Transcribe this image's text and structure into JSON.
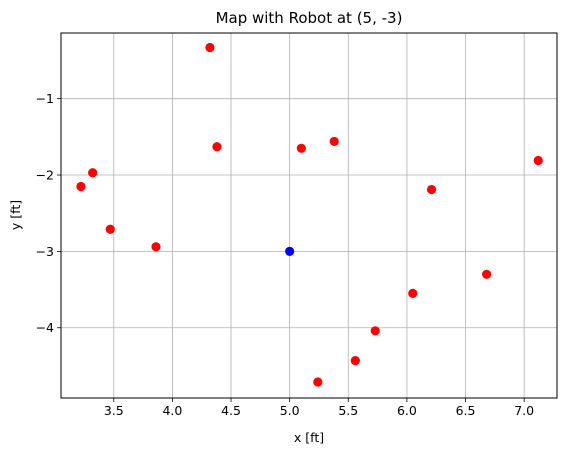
{
  "chart_data": {
    "type": "scatter",
    "title": "Map with Robot at (5, -3)",
    "xlabel": "x [ft]",
    "ylabel": "y [ft]",
    "xlim": [
      3.05,
      7.28
    ],
    "ylim": [
      -4.92,
      -0.14
    ],
    "xticks": [
      3.5,
      4.0,
      4.5,
      5.0,
      5.5,
      6.0,
      6.5,
      7.0
    ],
    "xtick_labels": [
      "3.5",
      "4.0",
      "4.5",
      "5.0",
      "5.5",
      "6.0",
      "6.5",
      "7.0"
    ],
    "yticks": [
      -1,
      -2,
      -3,
      -4
    ],
    "ytick_labels": [
      "−1",
      "−2",
      "−3",
      "−4"
    ],
    "grid": true,
    "series": [
      {
        "color": "#ff0000",
        "points": [
          {
            "x": 4.32,
            "y": -0.33
          },
          {
            "x": 3.22,
            "y": -2.15
          },
          {
            "x": 3.32,
            "y": -1.97
          },
          {
            "x": 3.47,
            "y": -2.71
          },
          {
            "x": 3.86,
            "y": -2.94
          },
          {
            "x": 4.38,
            "y": -1.63
          },
          {
            "x": 5.1,
            "y": -1.65
          },
          {
            "x": 5.38,
            "y": -1.56
          },
          {
            "x": 6.21,
            "y": -2.19
          },
          {
            "x": 7.12,
            "y": -1.81
          },
          {
            "x": 6.68,
            "y": -3.3
          },
          {
            "x": 6.05,
            "y": -3.55
          },
          {
            "x": 5.73,
            "y": -4.04
          },
          {
            "x": 5.56,
            "y": -4.43
          },
          {
            "x": 5.24,
            "y": -4.71
          }
        ]
      },
      {
        "color": "#0000ff",
        "points": [
          {
            "x": 5.0,
            "y": -3.0
          }
        ]
      }
    ]
  }
}
